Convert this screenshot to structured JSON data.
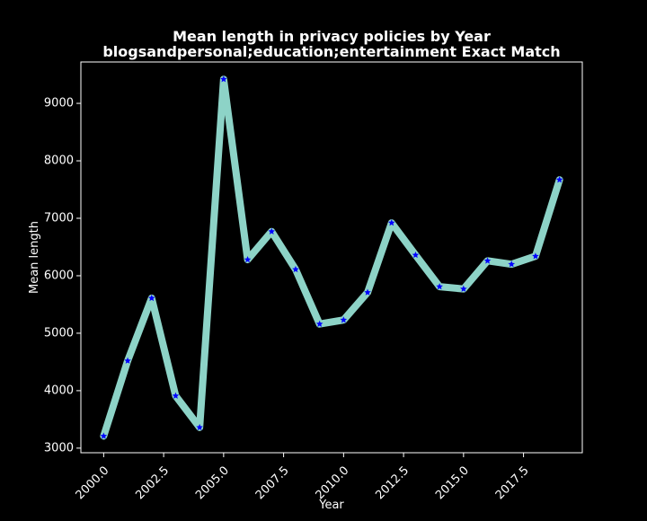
{
  "chart_data": {
    "type": "line",
    "title_line1": "Mean length in privacy policies by Year",
    "title_line2": "blogsandpersonal;education;entertainment Exact Match",
    "xlabel": "Year",
    "ylabel": "Mean length",
    "xlim": [
      1999.05,
      2019.95
    ],
    "ylim": [
      2920,
      9720
    ],
    "x_ticks": [
      2000.0,
      2002.5,
      2005.0,
      2007.5,
      2010.0,
      2012.5,
      2015.0,
      2017.5
    ],
    "x_tick_labels": [
      "2000.0",
      "2002.5",
      "2005.0",
      "2007.5",
      "2010.0",
      "2012.5",
      "2015.0",
      "2017.5"
    ],
    "y_ticks": [
      3000,
      4000,
      5000,
      6000,
      7000,
      8000,
      9000
    ],
    "y_tick_labels": [
      "3000",
      "4000",
      "5000",
      "6000",
      "7000",
      "8000",
      "9000"
    ],
    "grid": false,
    "background": "#000000",
    "series": [
      {
        "line_color": "#8dd3c7",
        "marker_color": "#0000ff",
        "marker": "star",
        "x": [
          2000,
          2001,
          2002,
          2003,
          2004,
          2005,
          2006,
          2007,
          2008,
          2009,
          2010,
          2011,
          2012,
          2013,
          2014,
          2015,
          2016,
          2017,
          2018,
          2019
        ],
        "y": [
          3210,
          4520,
          5610,
          3910,
          3360,
          9420,
          6280,
          6770,
          6110,
          5160,
          5230,
          5710,
          6920,
          6360,
          5810,
          5770,
          6260,
          6200,
          6340,
          7670
        ]
      }
    ]
  }
}
